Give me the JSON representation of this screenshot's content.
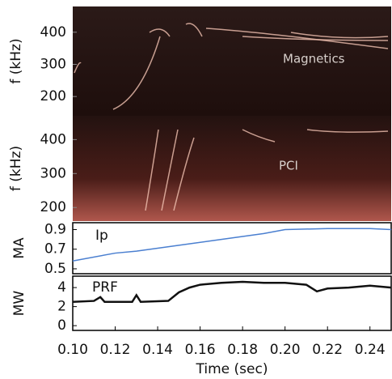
{
  "chart_data": [
    {
      "type": "spectrogram",
      "ylabel": "f (kHz)",
      "annotation": "Magnetics",
      "xlim": [
        0.1,
        0.25
      ],
      "ylim": [
        140,
        480
      ],
      "yticks": [
        200,
        300,
        400
      ]
    },
    {
      "type": "spectrogram",
      "ylabel": "f (kHz)",
      "annotation": "PCI",
      "xlim": [
        0.1,
        0.25
      ],
      "ylim": [
        160,
        470
      ],
      "yticks": [
        200,
        300,
        400
      ]
    },
    {
      "type": "line",
      "ylabel": "MA",
      "xlim": [
        0.1,
        0.25
      ],
      "ylim": [
        0.45,
        0.97
      ],
      "yticks": [
        {
          "value": 0.5,
          "label": "0.5"
        },
        {
          "value": 0.7,
          "label": "0.7"
        },
        {
          "value": 0.9,
          "label": "0.9"
        }
      ],
      "x": [
        0.1,
        0.12,
        0.13,
        0.15,
        0.17,
        0.19,
        0.2,
        0.22,
        0.24,
        0.25
      ],
      "series": [
        {
          "name": "Ip",
          "color": "#4a7fd0",
          "values": [
            0.58,
            0.66,
            0.68,
            0.74,
            0.8,
            0.86,
            0.9,
            0.91,
            0.91,
            0.9
          ]
        }
      ]
    },
    {
      "type": "line",
      "ylabel": "MW",
      "xlim": [
        0.1,
        0.25
      ],
      "ylim": [
        -0.5,
        5.2
      ],
      "yticks": [
        0,
        2,
        4
      ],
      "xlabel": "Time (sec)",
      "xticks": [
        {
          "value": 0.1,
          "label": "0.10"
        },
        {
          "value": 0.12,
          "label": "0.12"
        },
        {
          "value": 0.14,
          "label": "0.14"
        },
        {
          "value": 0.16,
          "label": "0.16"
        },
        {
          "value": 0.18,
          "label": "0.18"
        },
        {
          "value": 0.2,
          "label": "0.20"
        },
        {
          "value": 0.22,
          "label": "0.22"
        },
        {
          "value": 0.24,
          "label": "0.24"
        }
      ],
      "x": [
        0.1,
        0.11,
        0.113,
        0.115,
        0.128,
        0.13,
        0.132,
        0.145,
        0.15,
        0.155,
        0.16,
        0.17,
        0.18,
        0.19,
        0.2,
        0.21,
        0.215,
        0.22,
        0.23,
        0.24,
        0.25
      ],
      "series": [
        {
          "name": "PRF",
          "color": "#111111",
          "values": [
            2.5,
            2.6,
            3.0,
            2.5,
            2.5,
            3.2,
            2.5,
            2.6,
            3.5,
            4.0,
            4.3,
            4.5,
            4.6,
            4.5,
            4.5,
            4.3,
            3.6,
            3.9,
            4.0,
            4.2,
            4.0
          ]
        }
      ]
    }
  ]
}
